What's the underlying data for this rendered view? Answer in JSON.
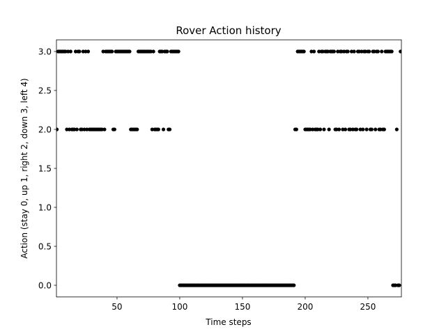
{
  "chart_data": {
    "type": "scatter",
    "title": "Rover Action history",
    "xlabel": "Time steps",
    "ylabel": "Action (stay 0, up 1, right 2, down 3, left 4)",
    "color": "#000000",
    "x": [
      1,
      2,
      3,
      4,
      5,
      6,
      7,
      8,
      9,
      10,
      11,
      12,
      13,
      14,
      15,
      16,
      17,
      18,
      19,
      20,
      21,
      22,
      23,
      24,
      25,
      26,
      27,
      28,
      29,
      30,
      31,
      32,
      33,
      34,
      35,
      36,
      37,
      38,
      39,
      40,
      41,
      42,
      43,
      44,
      45,
      46,
      47,
      48,
      49,
      50,
      51,
      52,
      53,
      54,
      55,
      56,
      57,
      58,
      59,
      60,
      61,
      62,
      63,
      64,
      65,
      66,
      67,
      68,
      69,
      70,
      71,
      72,
      73,
      74,
      75,
      76,
      77,
      78,
      79,
      80,
      81,
      82,
      83,
      84,
      85,
      86,
      87,
      88,
      89,
      90,
      91,
      92,
      93,
      94,
      95,
      96,
      97,
      98,
      99,
      100,
      101,
      102,
      103,
      104,
      105,
      106,
      107,
      108,
      109,
      110,
      111,
      112,
      113,
      114,
      115,
      116,
      117,
      118,
      119,
      120,
      121,
      122,
      123,
      124,
      125,
      126,
      127,
      128,
      129,
      130,
      131,
      132,
      133,
      134,
      135,
      136,
      137,
      138,
      139,
      140,
      141,
      142,
      143,
      144,
      145,
      146,
      147,
      148,
      149,
      150,
      151,
      152,
      153,
      154,
      155,
      156,
      157,
      158,
      159,
      160,
      161,
      162,
      163,
      164,
      165,
      166,
      167,
      168,
      169,
      170,
      171,
      172,
      173,
      174,
      175,
      176,
      177,
      178,
      179,
      180,
      181,
      182,
      183,
      184,
      185,
      186,
      187,
      188,
      189,
      190,
      191,
      192,
      193,
      194,
      195,
      196,
      197,
      198,
      199,
      200,
      201,
      202,
      203,
      204,
      205,
      206,
      207,
      208,
      209,
      210,
      211,
      212,
      213,
      214,
      215,
      216,
      217,
      218,
      219,
      220,
      221,
      222,
      223,
      224,
      225,
      226,
      227,
      228,
      229,
      230,
      231,
      232,
      233,
      234,
      235,
      236,
      237,
      238,
      239,
      240,
      241,
      242,
      243,
      244,
      245,
      246,
      247,
      248,
      249,
      250,
      251,
      252,
      253,
      254,
      255,
      256,
      257,
      258,
      259,
      260,
      261,
      262,
      263,
      264,
      265,
      266,
      267,
      268,
      269,
      270,
      271,
      272,
      273,
      274,
      275,
      276
    ],
    "values": [
      2,
      2,
      3,
      3,
      3,
      3,
      3,
      3,
      3,
      2,
      3,
      2,
      3,
      2,
      2,
      2,
      3,
      2,
      3,
      3,
      2,
      2,
      3,
      2,
      3,
      2,
      3,
      2,
      2,
      2,
      2,
      2,
      2,
      2,
      2,
      2,
      2,
      2,
      3,
      2,
      3,
      3,
      3,
      3,
      3,
      3,
      2,
      2,
      3,
      3,
      3,
      3,
      3,
      3,
      3,
      3,
      3,
      3,
      3,
      3,
      2,
      2,
      2,
      2,
      2,
      2,
      3,
      3,
      3,
      3,
      3,
      3,
      3,
      3,
      3,
      3,
      3,
      2,
      3,
      2,
      2,
      2,
      2,
      3,
      3,
      3,
      2,
      3,
      3,
      3,
      2,
      2,
      3,
      3,
      3,
      3,
      3,
      3,
      3,
      0,
      0,
      0,
      0,
      0,
      0,
      0,
      0,
      0,
      0,
      0,
      0,
      0,
      0,
      0,
      0,
      0,
      0,
      0,
      0,
      0,
      0,
      0,
      0,
      0,
      0,
      0,
      0,
      0,
      0,
      0,
      0,
      0,
      0,
      0,
      0,
      0,
      0,
      0,
      0,
      0,
      0,
      0,
      0,
      0,
      0,
      0,
      0,
      0,
      0,
      0,
      0,
      0,
      0,
      0,
      0,
      0,
      0,
      0,
      0,
      0,
      0,
      0,
      0,
      0,
      0,
      0,
      0,
      0,
      0,
      0,
      0,
      0,
      0,
      0,
      0,
      0,
      0,
      0,
      0,
      0,
      0,
      0,
      0,
      0,
      0,
      0,
      0,
      0,
      0,
      0,
      0,
      2,
      2,
      3,
      3,
      3,
      3,
      3,
      3,
      2,
      2,
      2,
      2,
      2,
      3,
      2,
      3,
      2,
      2,
      2,
      3,
      2,
      3,
      3,
      2,
      3,
      3,
      3,
      2,
      3,
      3,
      3,
      3,
      2,
      2,
      3,
      2,
      3,
      3,
      2,
      3,
      2,
      3,
      3,
      2,
      2,
      3,
      2,
      3,
      2,
      2,
      3,
      3,
      2,
      3,
      2,
      3,
      3,
      2,
      3,
      3,
      2,
      2,
      3,
      3,
      2,
      3,
      3,
      2,
      2,
      3,
      2,
      2,
      3,
      3,
      3,
      3,
      3,
      3,
      0,
      0,
      0,
      2,
      0,
      0,
      3
    ],
    "xlim": [
      1.7,
      276.7
    ],
    "xticks": [
      50,
      100,
      150,
      200,
      250
    ],
    "ylim": [
      -0.15,
      3.15
    ],
    "yticks": [
      {
        "value": 0,
        "label": "0.0"
      },
      {
        "value": 0.5,
        "label": "0.5"
      },
      {
        "value": 1,
        "label": "1.0"
      },
      {
        "value": 1.5,
        "label": "1.5"
      },
      {
        "value": 2,
        "label": "2.0"
      },
      {
        "value": 2.5,
        "label": "2.5"
      },
      {
        "value": 3,
        "label": "3.0"
      }
    ],
    "grid": false
  }
}
